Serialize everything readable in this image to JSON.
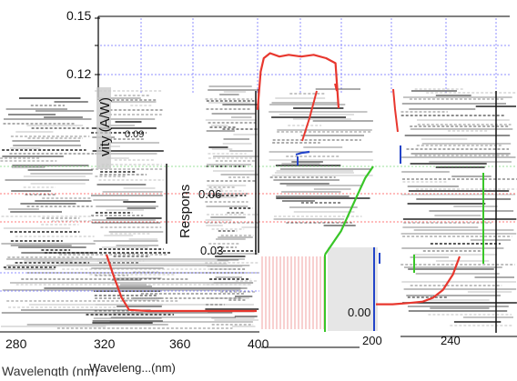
{
  "chart_data": {
    "type": "line",
    "ylabel": "Responsivity (A/W)",
    "xlabel": "Wavelength (nm)",
    "ylabel_fragment_left": "vity (A/W)",
    "ylabel_fragment_mid": "Respons",
    "xlabel_fragment_left": "Wavelength (nm)",
    "xlabel_fragment_mid": "Waveleng...(nm)",
    "y_ticks": [
      "0.15",
      "0.12",
      "0.09",
      "0.06",
      "0.03",
      "0.00"
    ],
    "x_ticks_lower": [
      "280",
      "320",
      "360",
      "400"
    ],
    "x_ticks_right": [
      "200",
      "240"
    ],
    "grid": true,
    "series": [
      {
        "name": "",
        "color": "#e8372e",
        "panel": "upper",
        "x": [
          400,
          402,
          404,
          408,
          414,
          420,
          428,
          436,
          444,
          450,
          452
        ],
        "y": [
          0.095,
          0.118,
          0.126,
          0.129,
          0.127,
          0.128,
          0.127,
          0.128,
          0.126,
          0.123,
          0.096
        ]
      },
      {
        "name": "",
        "color": "#e8372e",
        "panel": "lower-left",
        "x": [
          318,
          322,
          326,
          330,
          340,
          360,
          380,
          398
        ],
        "y": [
          0.05,
          0.03,
          0.012,
          0.001,
          0.0,
          0.0,
          0.0,
          0.0
        ]
      },
      {
        "name": "",
        "color": "#e8372e",
        "panel": "lower-right",
        "x": [
          200,
          210,
          220,
          228,
          234,
          240,
          246,
          250
        ],
        "y": [
          0.001,
          0.001,
          0.002,
          0.003,
          0.006,
          0.012,
          0.024,
          0.038
        ]
      },
      {
        "name": "",
        "color": "#39c628",
        "panel": "mid",
        "x": [
          0,
          1,
          2,
          3,
          4,
          5,
          6
        ],
        "y": [
          0.0,
          0.01,
          0.02,
          0.035,
          0.05,
          0.065,
          0.075
        ]
      },
      {
        "name": "",
        "color": "#2344c9",
        "panel": "mid",
        "x": [
          0,
          1,
          2
        ],
        "y": [
          0.09,
          0.088,
          0.087
        ]
      }
    ]
  },
  "colors": {
    "accent_red": "#e8372e",
    "accent_green": "#39c628",
    "accent_blue": "#2344c9",
    "grid_blue": "#8f8fff",
    "grid_red": "#ff7a7a",
    "grid_green": "#9be09b"
  }
}
